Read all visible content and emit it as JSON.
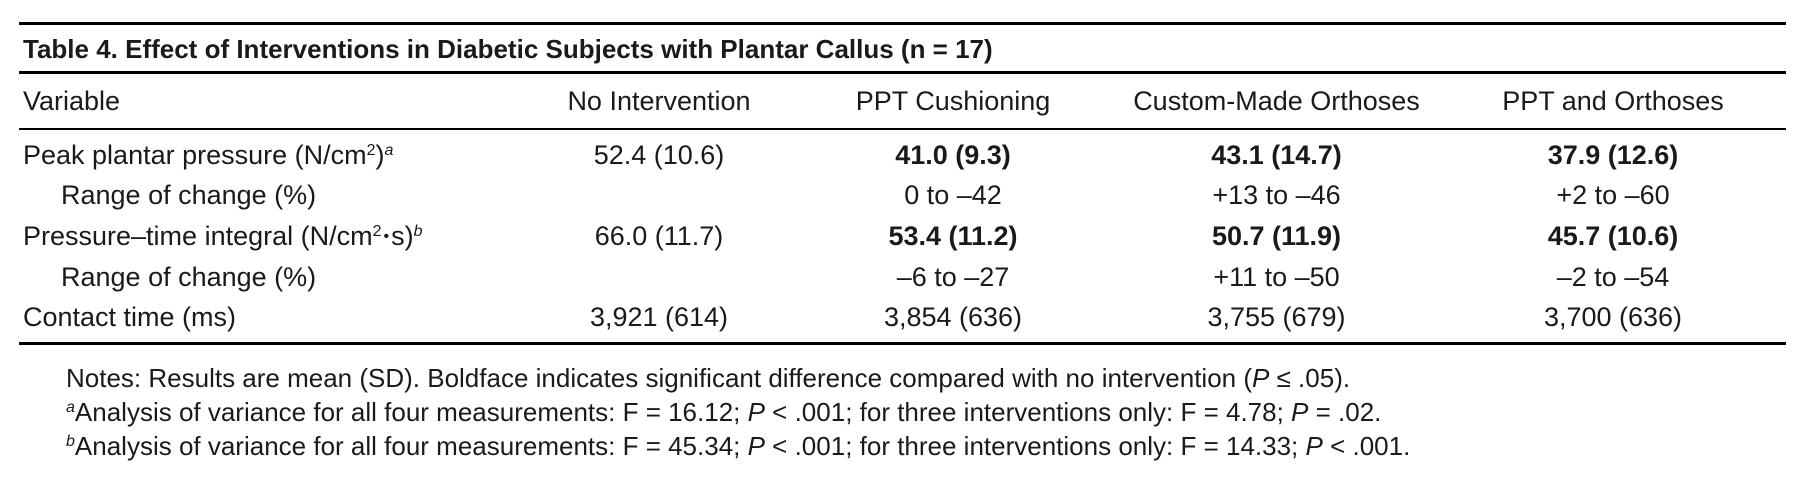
{
  "table": {
    "caption": "Table 4. Effect of Interventions in Diabetic Subjects with Plantar Callus (n = 17)",
    "headers": [
      "Variable",
      "No Intervention",
      "PPT Cushioning",
      "Custom-Made Orthoses",
      "PPT and Orthoses"
    ],
    "rows": [
      {
        "label_main": "Peak plantar pressure (N/cm",
        "label_sup": "2",
        "label_close": ")",
        "label_footnote": "a",
        "cells": [
          "52.4 (10.6)",
          "41.0 (9.3)",
          "43.1 (14.7)",
          "37.9 (12.6)"
        ]
      },
      {
        "label": "Range of change (%)",
        "cells": [
          "",
          "0 to –42",
          "+13 to –46",
          "+2 to –60"
        ]
      },
      {
        "label_main": "Pressure–time integral (N/cm",
        "label_sup": "2",
        "label_dot": "•",
        "label_tail": "s)",
        "label_footnote": "b",
        "cells": [
          "66.0 (11.7)",
          "53.4 (11.2)",
          "50.7 (11.9)",
          "45.7 (10.6)"
        ]
      },
      {
        "label": "Range of change (%)",
        "cells": [
          "",
          "–6 to –27",
          "+11 to –50",
          "–2 to –54"
        ]
      },
      {
        "label": "Contact time (ms)",
        "cells": [
          "3,921 (614)",
          "3,854 (636)",
          "3,755 (679)",
          "3,700 (636)"
        ]
      }
    ]
  },
  "notes": {
    "line1_text": "Notes: Results are mean (SD). Boldface indicates significant difference compared with no intervention (",
    "line1_p": "P",
    "line1_end": " ≤ .05).",
    "a_marker": "a",
    "a_text1": "Analysis of variance for all four measurements: F = 16.12; ",
    "a_p1": "P",
    "a_text2": " < .001; for three interventions only: F = 4.78; ",
    "a_p2": "P",
    "a_text3": " = .02.",
    "b_marker": "b",
    "b_text1": "Analysis of variance for all four measurements: F = 45.34; ",
    "b_p1": "P",
    "b_text2": " < .001; for three interventions only: F = 14.33; ",
    "b_p2": "P",
    "b_text3": " < .001."
  }
}
